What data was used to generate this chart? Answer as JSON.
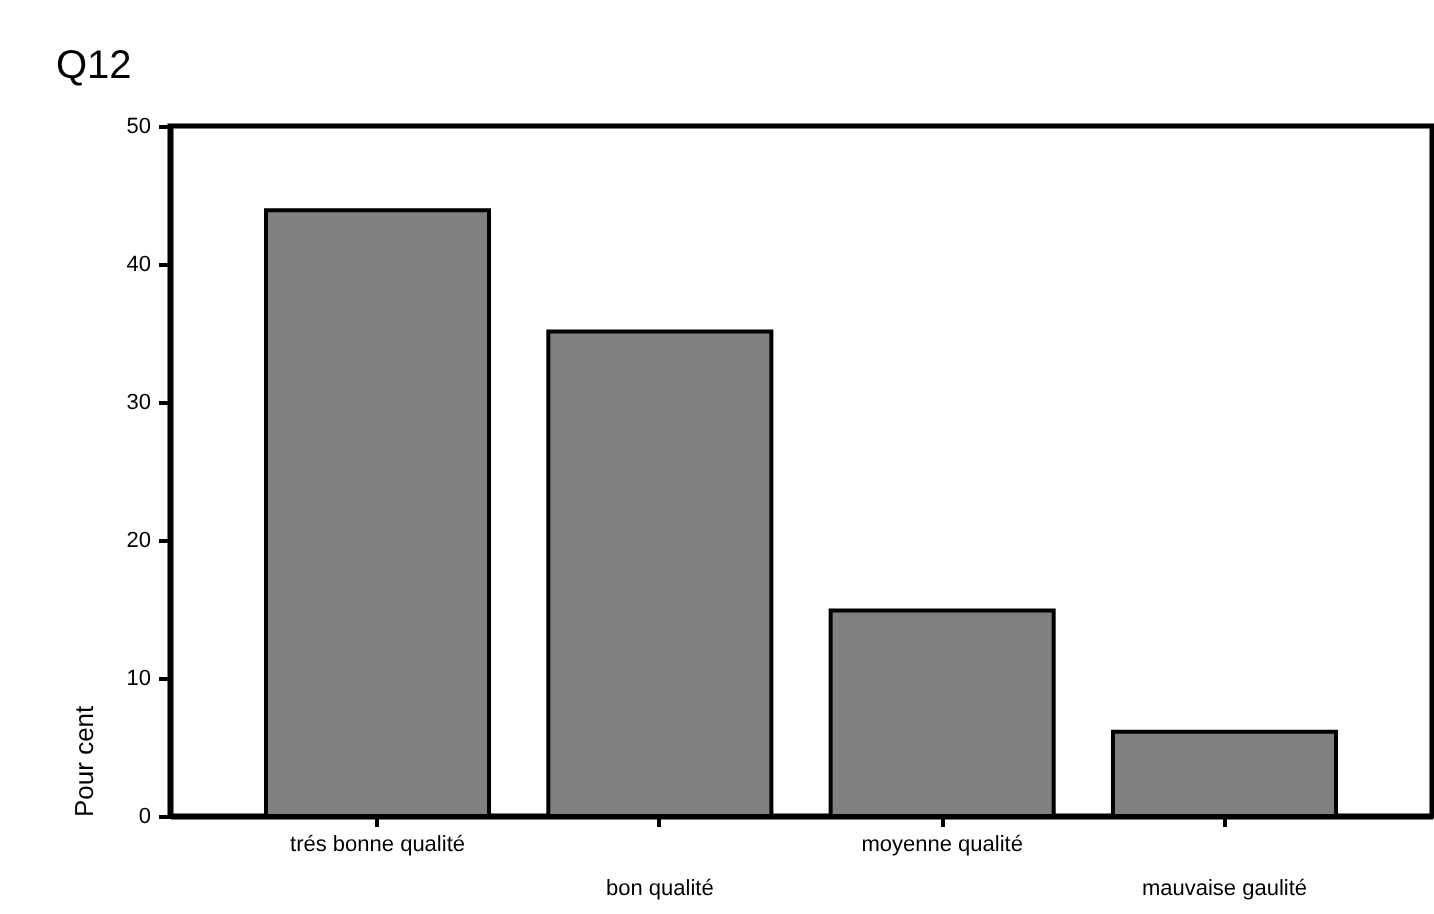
{
  "chart_data": {
    "type": "bar",
    "title": "Q12",
    "ylabel": "Pour cent",
    "categories": [
      "trés bonne qualité",
      "bon qualité",
      "moyenne qualité",
      "mauvaise gaulité"
    ],
    "values": [
      43.9,
      35.1,
      14.9,
      6.1
    ],
    "color": "#808080",
    "ylim": [
      0,
      50
    ],
    "yticks": [
      0,
      10,
      20,
      30,
      40,
      50
    ],
    "grid": false
  }
}
